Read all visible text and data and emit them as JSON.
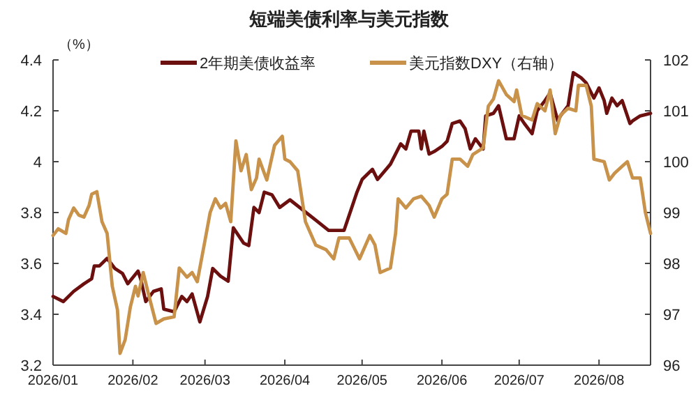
{
  "chart_data": {
    "type": "line",
    "title": "短端美债利率与美元指数",
    "ylabel": "（%）",
    "xlim": [
      "2026-01-01",
      "2026-08-21"
    ],
    "xticks": [
      {
        "value": "2026-01-01",
        "label": "2026/01"
      },
      {
        "value": "2026-02-01",
        "label": "2026/02"
      },
      {
        "value": "2026-03-01",
        "label": "2026/03"
      },
      {
        "value": "2026-04-01",
        "label": "2026/04"
      },
      {
        "value": "2026-05-01",
        "label": "2026/05"
      },
      {
        "value": "2026-06-01",
        "label": "2026/06"
      },
      {
        "value": "2026-07-01",
        "label": "2026/07"
      },
      {
        "value": "2026-08-01",
        "label": "2026/08"
      }
    ],
    "ylim": [
      3.2,
      4.4
    ],
    "yticks": [
      3.2,
      3.4,
      3.6,
      3.8,
      4,
      4.2,
      4.4
    ],
    "y2lim": [
      96,
      102
    ],
    "y2ticks": [
      96,
      97,
      98,
      99,
      100,
      101,
      102
    ],
    "legend": "top",
    "grid": false,
    "series": [
      {
        "name": "2年期美债收益率",
        "color": "#6b0f0f",
        "x": [
          "2026-01-01",
          "2026-01-05",
          "2026-01-09",
          "2026-01-13",
          "2026-01-16",
          "2026-01-17",
          "2026-01-19",
          "2026-01-22",
          "2026-01-25",
          "2026-01-28",
          "2026-01-30",
          "2026-02-03",
          "2026-02-04",
          "2026-02-06",
          "2026-02-09",
          "2026-02-12",
          "2026-02-13",
          "2026-02-17",
          "2026-02-20",
          "2026-02-22",
          "2026-02-24",
          "2026-02-27",
          "2026-03-02",
          "2026-03-04",
          "2026-03-07",
          "2026-03-10",
          "2026-03-12",
          "2026-03-16",
          "2026-03-18",
          "2026-03-20",
          "2026-03-22",
          "2026-03-24",
          "2026-03-27",
          "2026-03-30",
          "2026-04-03",
          "2026-04-13",
          "2026-04-18",
          "2026-04-24",
          "2026-04-29",
          "2026-05-01",
          "2026-05-05",
          "2026-05-07",
          "2026-05-12",
          "2026-05-16",
          "2026-05-18",
          "2026-05-20",
          "2026-05-23",
          "2026-05-24",
          "2026-05-25",
          "2026-05-27",
          "2026-05-29",
          "2026-06-01",
          "2026-06-03",
          "2026-06-05",
          "2026-06-08",
          "2026-06-10",
          "2026-06-12",
          "2026-06-14",
          "2026-06-17",
          "2026-06-18",
          "2026-06-21",
          "2026-06-23",
          "2026-06-26",
          "2026-06-29",
          "2026-07-01",
          "2026-07-03",
          "2026-07-06",
          "2026-07-08",
          "2026-07-11",
          "2026-07-13",
          "2026-07-16",
          "2026-07-17",
          "2026-07-20",
          "2026-07-22",
          "2026-07-25",
          "2026-07-27",
          "2026-07-30",
          "2026-08-01",
          "2026-08-03",
          "2026-08-04",
          "2026-08-06",
          "2026-08-08",
          "2026-08-10",
          "2026-08-13",
          "2026-08-14",
          "2026-08-17",
          "2026-08-21"
        ],
        "values": [
          3.47,
          3.45,
          3.49,
          3.52,
          3.54,
          3.59,
          3.59,
          3.62,
          3.58,
          3.56,
          3.52,
          3.57,
          3.54,
          3.45,
          3.49,
          3.5,
          3.42,
          3.41,
          3.47,
          3.45,
          3.48,
          3.37,
          3.47,
          3.58,
          3.55,
          3.53,
          3.74,
          3.68,
          3.67,
          3.82,
          3.8,
          3.88,
          3.87,
          3.82,
          3.85,
          3.77,
          3.73,
          3.73,
          3.88,
          3.93,
          3.97,
          3.93,
          3.99,
          4.07,
          4.05,
          4.12,
          4.12,
          4.05,
          4.12,
          4.03,
          4.04,
          4.06,
          4.08,
          4.15,
          4.16,
          4.13,
          4.05,
          4.09,
          4.05,
          4.18,
          4.19,
          4.22,
          4.09,
          4.09,
          4.18,
          4.15,
          4.11,
          4.2,
          4.24,
          4.27,
          4.16,
          4.18,
          4.22,
          4.35,
          4.33,
          4.31,
          4.25,
          4.29,
          4.24,
          4.19,
          4.25,
          4.22,
          4.24,
          4.15,
          4.16,
          4.18,
          4.19
        ]
      },
      {
        "name": "美元指数DXY（右轴）",
        "color": "#c8924a",
        "axis": "y2",
        "x": [
          "2026-01-01",
          "2026-01-03",
          "2026-01-06",
          "2026-01-07",
          "2026-01-09",
          "2026-01-11",
          "2026-01-13",
          "2026-01-15",
          "2026-01-16",
          "2026-01-18",
          "2026-01-20",
          "2026-01-22",
          "2026-01-24",
          "2026-01-26",
          "2026-01-27",
          "2026-01-29",
          "2026-01-31",
          "2026-02-02",
          "2026-02-03",
          "2026-02-05",
          "2026-02-07",
          "2026-02-10",
          "2026-02-13",
          "2026-02-17",
          "2026-02-19",
          "2026-02-22",
          "2026-02-24",
          "2026-02-26",
          "2026-03-01",
          "2026-03-03",
          "2026-03-05",
          "2026-03-07",
          "2026-03-09",
          "2026-03-11",
          "2026-03-13",
          "2026-03-15",
          "2026-03-17",
          "2026-03-19",
          "2026-03-21",
          "2026-03-22",
          "2026-03-25",
          "2026-03-28",
          "2026-03-31",
          "2026-04-01",
          "2026-04-03",
          "2026-04-06",
          "2026-04-09",
          "2026-04-13",
          "2026-04-17",
          "2026-04-20",
          "2026-04-22",
          "2026-04-26",
          "2026-04-30",
          "2026-05-04",
          "2026-05-06",
          "2026-05-08",
          "2026-05-12",
          "2026-05-14",
          "2026-05-15",
          "2026-05-18",
          "2026-05-21",
          "2026-05-24",
          "2026-05-27",
          "2026-05-29",
          "2026-06-01",
          "2026-06-03",
          "2026-06-05",
          "2026-06-08",
          "2026-06-11",
          "2026-06-13",
          "2026-06-17",
          "2026-06-19",
          "2026-06-21",
          "2026-06-23",
          "2026-06-26",
          "2026-06-29",
          "2026-06-30",
          "2026-07-02",
          "2026-07-06",
          "2026-07-08",
          "2026-07-11",
          "2026-07-13",
          "2026-07-15",
          "2026-07-17",
          "2026-07-20",
          "2026-07-23",
          "2026-07-24",
          "2026-07-27",
          "2026-07-29",
          "2026-07-30",
          "2026-08-03",
          "2026-08-05",
          "2026-08-07",
          "2026-08-10",
          "2026-08-12",
          "2026-08-14",
          "2026-08-17",
          "2026-08-19",
          "2026-08-21"
        ],
        "values": [
          98.55,
          98.68,
          98.59,
          98.86,
          99.09,
          98.95,
          98.91,
          99.14,
          99.36,
          99.41,
          98.82,
          98.59,
          97.55,
          97.09,
          96.23,
          96.5,
          97.14,
          97.55,
          97.36,
          97.82,
          97.41,
          96.82,
          96.91,
          96.95,
          97.91,
          97.73,
          97.82,
          97.64,
          98.45,
          99,
          99.27,
          99.09,
          99.18,
          98.82,
          100.41,
          99.82,
          100.14,
          99.45,
          99.68,
          100.05,
          99.64,
          100.32,
          100.5,
          100.05,
          100,
          99.82,
          98.82,
          98.36,
          98.27,
          98.09,
          98.5,
          98.5,
          98.09,
          98.55,
          98.36,
          97.82,
          97.91,
          98.59,
          99.27,
          99.09,
          99.27,
          99.32,
          99.14,
          98.91,
          99.27,
          99.36,
          100.05,
          100.05,
          99.91,
          100.14,
          100.27,
          101.09,
          101.23,
          101.59,
          101.32,
          101.18,
          101.41,
          100.91,
          100.82,
          101.14,
          101,
          101.41,
          100.55,
          100.91,
          101.05,
          101,
          101.5,
          101.5,
          101.09,
          100.05,
          100,
          99.64,
          99.77,
          99.91,
          100,
          99.68,
          99.68,
          99,
          98.59
        ]
      }
    ]
  }
}
